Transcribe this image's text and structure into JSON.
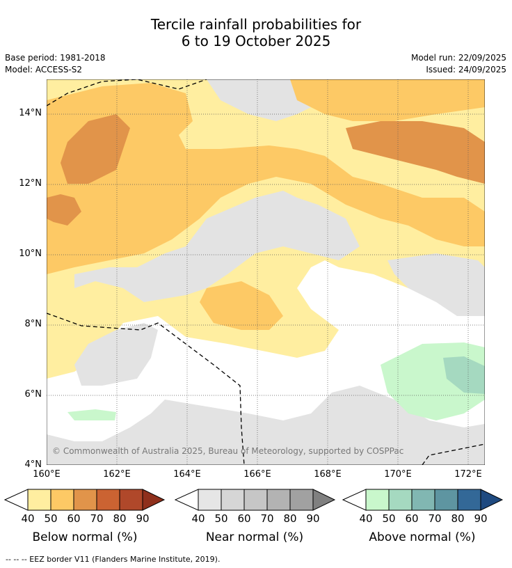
{
  "title_line1": "Tercile rainfall probabilities for",
  "title_line2": "6 to 19 October 2025",
  "base_period": "Base period: 1981-2018",
  "model": "Model: ACCESS-S2",
  "model_run": "Model run: 22/09/2025",
  "issued": "Issued: 24/09/2025",
  "copyright": "© Commonwealth of Australia 2025, Bureau of Meteorology, supported by COSPPac",
  "footer": "-- -- -- EEZ border V11 (Flanders Marine Institute, 2019).",
  "lat_labels": [
    "14°N",
    "12°N",
    "10°N",
    "8°N",
    "6°N",
    "4°N"
  ],
  "lon_labels": [
    "160°E",
    "162°E",
    "164°E",
    "166°E",
    "168°E",
    "170°E",
    "172°E"
  ],
  "colorbars": [
    {
      "title": "Below normal (%)",
      "ticks": [
        "40",
        "50",
        "60",
        "70",
        "80",
        "90"
      ],
      "colors": [
        "#ffeea0",
        "#fdc965",
        "#e1944a",
        "#cb6332",
        "#b0482a",
        "#8f301c"
      ]
    },
    {
      "title": "Near normal (%)",
      "ticks": [
        "40",
        "50",
        "60",
        "70",
        "80",
        "90"
      ],
      "colors": [
        "#e6e6e6",
        "#d6d6d6",
        "#c6c6c6",
        "#b3b3b3",
        "#a1a1a1",
        "#808080"
      ]
    },
    {
      "title": "Above normal (%)",
      "ticks": [
        "40",
        "50",
        "60",
        "70",
        "80",
        "90"
      ],
      "colors": [
        "#c9f7cc",
        "#a5d9c0",
        "#81b7b2",
        "#5e95a1",
        "#336897",
        "#1f4a80"
      ]
    }
  ],
  "colors": {
    "below_light": "#ffeea0",
    "below_mid": "#fdc965",
    "below_dark": "#e1944a",
    "near_light": "#e3e3e3",
    "above_light": "#c9f7cc",
    "above_mid": "#a5d9c0"
  }
}
